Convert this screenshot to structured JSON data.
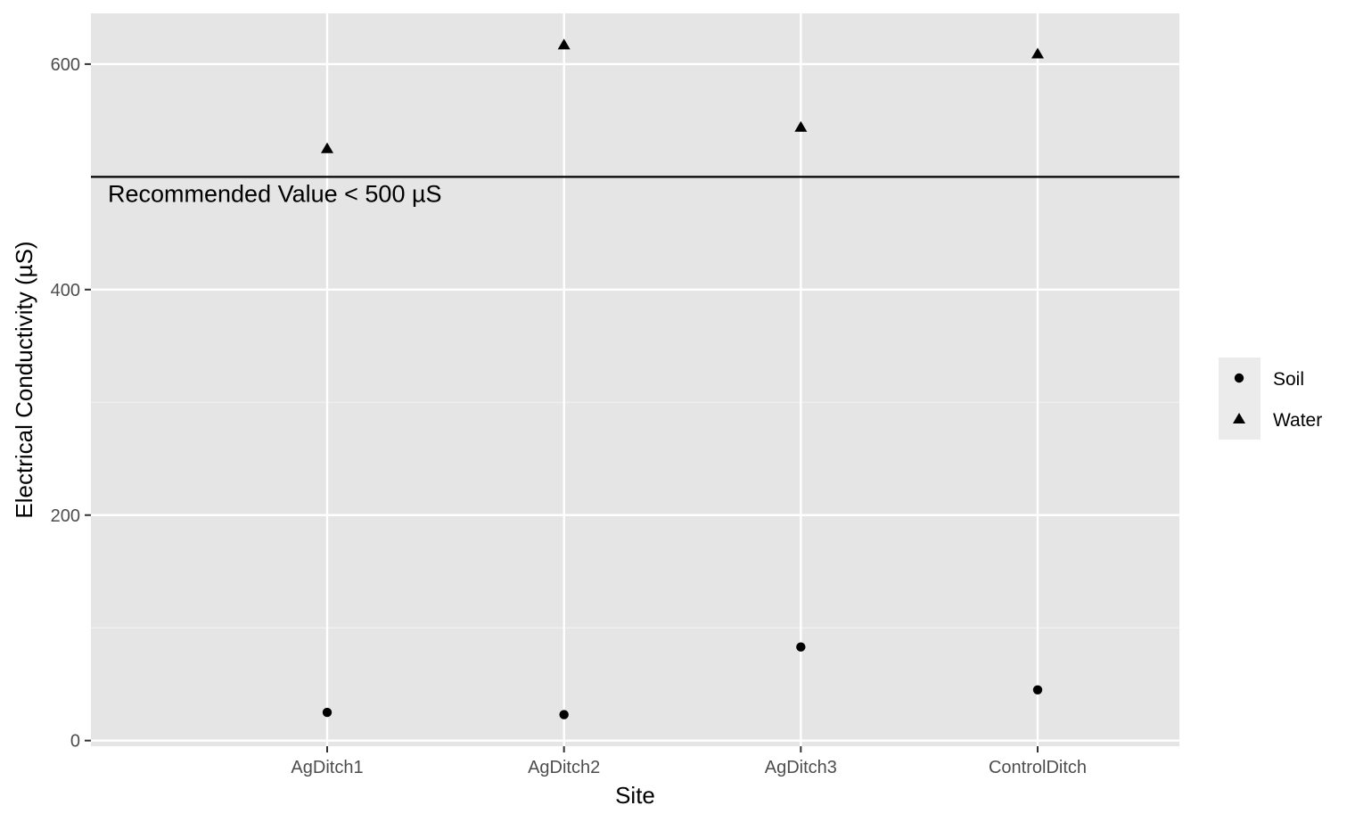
{
  "chart_data": {
    "type": "scatter",
    "title": "",
    "xlabel": "Site",
    "ylabel": "Electrical Conductivity (µS)",
    "categories": [
      "AgDitch1",
      "AgDitch2",
      "AgDitch3",
      "ControlDitch"
    ],
    "ylim": [
      -5,
      645
    ],
    "yticks": [
      0,
      200,
      400,
      600
    ],
    "grid": true,
    "legend_position": "right",
    "series": [
      {
        "name": "Soil",
        "marker": "circle",
        "values": [
          25,
          23,
          83,
          45
        ]
      },
      {
        "name": "Water",
        "marker": "triangle",
        "values": [
          525,
          617,
          544,
          609
        ]
      }
    ],
    "reference_line": {
      "y": 500,
      "label": "Recommended Value < 500 µS"
    },
    "colors": {
      "panel": "#e5e5e5",
      "grid": "#ffffff",
      "points": "#000000",
      "legend_key": "#ebebeb"
    }
  }
}
